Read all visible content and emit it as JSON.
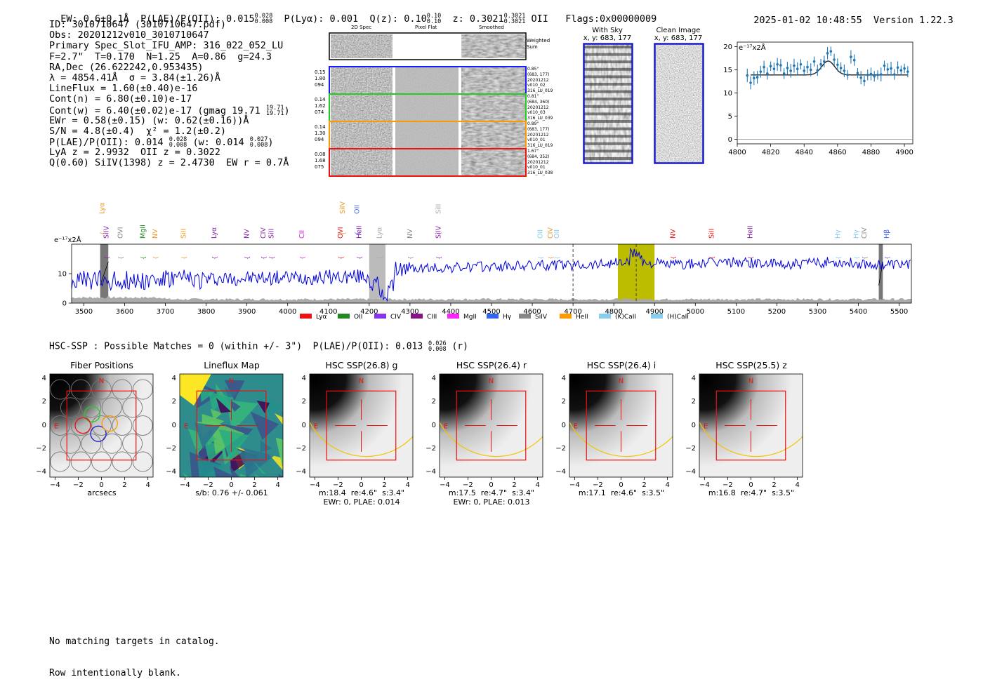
{
  "header": {
    "ew": "EW: 0.6±0.1Å",
    "plae_label": "P(LAE)/P(OII): 0.015",
    "plae_hi": "0.028",
    "plae_lo": "0.008",
    "plya": "P(Lyα): 0.001",
    "qz_label": "Q(z): 0.10",
    "qz_hi": "0.10",
    "qz_lo": "0.10",
    "z_label": "z: 0.3021",
    "z_hi": "0.3021",
    "z_lo": "0.3021",
    "z_line": "OII",
    "flags": "Flags:0x00000009",
    "datetime": "2025-01-02 10:48:55",
    "version": "Version 1.22.3"
  },
  "info": {
    "id": "ID: 3010710647 (3010710647.pdf)",
    "obs": "Obs: 20201212v010_3010710647",
    "primary": "Primary Spec_Slot_IFU_AMP: 316_022_052_LU",
    "fparams": "F=2.7\"  T=0.170  N=1.25  A=0.86  g=24.3",
    "radec": "RA,Dec (26.622242,0.953435)",
    "lambda": "λ = 4854.41Å  σ = 3.84(±1.26)Å",
    "lineflux": "LineFlux = 1.60(±0.40)e-16",
    "contn": "Cont(n) = 6.80(±0.10)e-17",
    "contw": "Cont(w) = 6.40(±0.02)e-17 (gmag 19.71",
    "contw_hi": "19.71",
    "contw_lo": "19.71",
    "contw_end": ")",
    "ewr": "EWr = 0.58(±0.15) (w: 0.62(±0.16))Å",
    "sn": "S/N = 4.8(±0.4)  χ² = 1.2(±0.2)",
    "plae": "P(LAE)/P(OII): 0.014",
    "plae_hi": "0.028",
    "plae_lo": "0.008",
    "plae_w": "(w: 0.014",
    "plae_w_hi": "0.027",
    "plae_w_lo": "0.008",
    "plae_end": ")",
    "lya": "LyA z = 2.9932  OII z = 0.3022",
    "q": "Q(0.60) SiIV(1398) z = 2.4730  EW r = 0.7Å"
  },
  "cutouts": {
    "col_labels": [
      "2D Spec",
      "Pixel Flat",
      "Smoothed"
    ],
    "weighted_sum": "Weighted Sum",
    "rows": [
      {
        "left": [
          "0.15",
          "1.80",
          "094"
        ],
        "right": [
          "0.85\"",
          "(683, 177)",
          "20201212",
          "v010_02",
          "316_LU_019"
        ],
        "color": "#1a1aff"
      },
      {
        "left": [
          "0.14",
          "1.62",
          "074"
        ],
        "right": [
          "0.81\"",
          "(684, 360)",
          "20201212",
          "v010_03",
          "316_LU_039"
        ],
        "color": "#22cc22"
      },
      {
        "left": [
          "0.14",
          "1.30",
          "094"
        ],
        "right": [
          "0.89\"",
          "(683, 177)",
          "20201212",
          "v010_01",
          "316_LU_019"
        ],
        "color": "#ff9900"
      },
      {
        "left": [
          "0.08",
          "1.68",
          "075"
        ],
        "right": [
          "1.67\"",
          "(684, 352)",
          "20201212",
          "v010_01",
          "316_LU_038"
        ],
        "color": "#ee1111"
      }
    ]
  },
  "sky": {
    "with_sky_title": "With Sky",
    "with_sky_xy": "x, y: 683, 177",
    "clean_title": "Clean Image",
    "clean_xy": "x, y: 683, 177"
  },
  "zoom_chart": {
    "unit": "e⁻¹⁷x2Å",
    "x_ticks": [
      "4800",
      "4820",
      "4840",
      "4860",
      "4880",
      "4900"
    ],
    "y_ticks": [
      "0",
      "5",
      "10",
      "15",
      "20"
    ]
  },
  "chart_data": [
    {
      "type": "scatter",
      "title": "",
      "ylabel": "e⁻¹⁷x2Å",
      "xlim": [
        4800,
        4905
      ],
      "ylim": [
        -1,
        21
      ],
      "errorbar": true,
      "x": [
        4806,
        4808,
        4810,
        4812,
        4814,
        4816,
        4818,
        4820,
        4822,
        4824,
        4826,
        4828,
        4830,
        4832,
        4834,
        4836,
        4838,
        4840,
        4842,
        4844,
        4846,
        4848,
        4850,
        4852,
        4854,
        4856,
        4858,
        4860,
        4862,
        4864,
        4866,
        4868,
        4870,
        4872,
        4874,
        4876,
        4878,
        4880,
        4882,
        4884,
        4886,
        4888,
        4890,
        4892,
        4894,
        4896,
        4898,
        4900,
        4902
      ],
      "y": [
        13.8,
        12.2,
        13.2,
        13.4,
        14.6,
        15.6,
        14.2,
        15.8,
        15.2,
        16.2,
        16.0,
        14.2,
        15.4,
        14.8,
        15.9,
        15.2,
        16.2,
        14.8,
        15.6,
        15.0,
        16.8,
        14.9,
        16.2,
        16.8,
        18.6,
        19.0,
        17.2,
        16.1,
        15.4,
        14.8,
        13.9,
        17.8,
        17.1,
        14.3,
        13.3,
        12.6,
        13.9,
        14.1,
        13.6,
        13.9,
        14.0,
        15.9,
        15.1,
        15.3,
        14.0,
        15.5,
        14.9,
        15.3,
        14.6
      ],
      "model_baseline": 13.9,
      "model_peak_x": 4854.4,
      "model_peak_y": 16.9,
      "model_sigma": 3.84
    },
    {
      "type": "line",
      "title": "",
      "ylabel": "e⁻¹⁷x2Å",
      "xlim": [
        3470,
        5530
      ],
      "ylim": [
        0,
        20
      ],
      "x_ticks": [
        "3500",
        "3600",
        "3700",
        "3800",
        "3900",
        "4000",
        "4100",
        "4200",
        "4300",
        "4400",
        "4500",
        "4600",
        "4700",
        "4800",
        "4900",
        "5000",
        "5100",
        "5200",
        "5300",
        "5400",
        "5500"
      ],
      "y_ticks": [
        "0",
        "10"
      ],
      "highlight_band": [
        4810,
        4900
      ],
      "gray_band": [
        4200,
        4240
      ],
      "dark_bands": [
        [
          3540,
          3560
        ],
        [
          5450,
          5460
        ]
      ],
      "dashed_lines": [
        4700,
        4855
      ]
    }
  ],
  "line_labels": [
    {
      "text": "Lyα",
      "x": 3545,
      "row": 2,
      "color": "#ee9922"
    },
    {
      "text": "SiIV",
      "x": 3555,
      "row": 1,
      "color": "#8822aa"
    },
    {
      "text": "OVI",
      "x": 3590,
      "row": 1,
      "color": "#888888"
    },
    {
      "text": "MgII",
      "x": 3645,
      "row": 1,
      "color": "#228822"
    },
    {
      "text": "NV",
      "x": 3675,
      "row": 1,
      "color": "#ee9922"
    },
    {
      "text": "SiII",
      "x": 3745,
      "row": 1,
      "color": "#ee9922"
    },
    {
      "text": "Lyα",
      "x": 3820,
      "row": 1,
      "color": "#8822aa"
    },
    {
      "text": "NV",
      "x": 3900,
      "row": 1,
      "color": "#8822aa"
    },
    {
      "text": "CIV",
      "x": 3940,
      "row": 1,
      "color": "#8822aa"
    },
    {
      "text": "SiII",
      "x": 3960,
      "row": 1,
      "color": "#8822aa"
    },
    {
      "text": "CII",
      "x": 4035,
      "row": 1,
      "color": "#dd22dd"
    },
    {
      "text": "OVI",
      "x": 4130,
      "row": 1,
      "color": "#ee1111"
    },
    {
      "text": "SiIV",
      "x": 4135,
      "row": 2,
      "color": "#ee9922"
    },
    {
      "text": "OII",
      "x": 4170,
      "row": 2,
      "color": "#4466ee"
    },
    {
      "text": "HeII",
      "x": 4175,
      "row": 1,
      "color": "#8822aa"
    },
    {
      "text": "Lyα",
      "x": 4225,
      "row": 1,
      "color": "#aaaaaa"
    },
    {
      "text": "NV",
      "x": 4300,
      "row": 1,
      "color": "#888888"
    },
    {
      "text": "SiII",
      "x": 4370,
      "row": 2,
      "color": "#aaaaaa"
    },
    {
      "text": "SiIV",
      "x": 4370,
      "row": 1,
      "color": "#8822aa"
    },
    {
      "text": "OII",
      "x": 4620,
      "row": 1,
      "color": "#88ccee"
    },
    {
      "text": "CIV",
      "x": 4645,
      "row": 1,
      "color": "#ee9922"
    },
    {
      "text": "OII",
      "x": 4660,
      "row": 1,
      "color": "#88ccee"
    },
    {
      "text": "NV",
      "x": 4945,
      "row": 1,
      "color": "#ee1111"
    },
    {
      "text": "SiII",
      "x": 5040,
      "row": 1,
      "color": "#ee1111"
    },
    {
      "text": "HeII",
      "x": 5135,
      "row": 1,
      "color": "#8822aa"
    },
    {
      "text": "Hγ",
      "x": 5350,
      "row": 1,
      "color": "#88ccee"
    },
    {
      "text": "Hγ",
      "x": 5395,
      "row": 1,
      "color": "#88ccee"
    },
    {
      "text": "CIV",
      "x": 5415,
      "row": 1,
      "color": "#888888"
    },
    {
      "text": "Hβ",
      "x": 5470,
      "row": 1,
      "color": "#4466ee"
    }
  ],
  "legend": [
    {
      "label": "Lyα",
      "color": "#ee1111"
    },
    {
      "label": "OII",
      "color": "#228822"
    },
    {
      "label": "CIV",
      "color": "#8833ee"
    },
    {
      "label": "CIII",
      "color": "#881188"
    },
    {
      "label": "MgII",
      "color": "#ff22ff"
    },
    {
      "label": "Hγ",
      "color": "#3366ee"
    },
    {
      "label": "SiIV",
      "color": "#888888"
    },
    {
      "label": "HeII",
      "color": "#ff9900"
    },
    {
      "label": "(K)CaII",
      "color": "#88ccee"
    },
    {
      "label": "(H)CaII",
      "color": "#88ccee"
    }
  ],
  "hsc": {
    "summary": "HSC-SSP : Possible Matches = 0 (within +/- 3\")  P(LAE)/P(OII): 0.013",
    "summary_hi": "0.026",
    "summary_lo": "0.008",
    "summary_end": "(r)",
    "panels": [
      {
        "title": "Fiber Positions",
        "caption1": "arcsecs",
        "caption2": ""
      },
      {
        "title": "Lineflux Map",
        "caption1": "s/b: 0.76 +/- 0.061",
        "caption2": ""
      },
      {
        "title": "HSC SSP(26.8) g",
        "caption1": "m:18.4  re:4.6\"  s:3.4\"",
        "caption2": "EWr: 0, PLAE: 0.014"
      },
      {
        "title": "HSC SSP(26.4) r",
        "caption1": "m:17.5  re:4.7\"  s:3.4\"",
        "caption2": "EWr: 0, PLAE: 0.013"
      },
      {
        "title": "HSC SSP(26.4) i",
        "caption1": "m:17.1  re:4.6\"  s:3.5\"",
        "caption2": ""
      },
      {
        "title": "HSC SSP(25.5) z",
        "caption1": "m:16.8  re:4.7\"  s:3.5\"",
        "caption2": ""
      }
    ],
    "tick_labels": [
      "−4",
      "−2",
      "0",
      "2",
      "4"
    ],
    "compass_n": "N",
    "compass_e": "E"
  },
  "footer": {
    "line1": "No matching targets in catalog.",
    "line2": "Row intentionally blank."
  }
}
